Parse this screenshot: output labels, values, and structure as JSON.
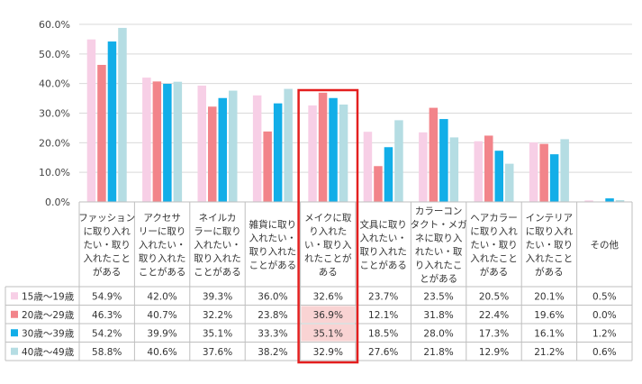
{
  "chart_data": {
    "type": "bar",
    "categories": [
      "ファッションに取り入れたい・取り入れたことがある",
      "アクセサリーに取り入れたい・取り入れたことがある",
      "ネイルカラーに取り入れたい・取り入れたことがある",
      "雑貨に取り入れたい・取り入れたことがある",
      "メイクに取り入れたい・取り入れたことがある",
      "文具に取り入れたい・取り入れたことがある",
      "カラーコンタクト・メガネに取り入れたい・取り入れたことがある",
      "ヘアカラーに取り入れたい・取り入れたことがある",
      "インテリアに取り入れたい・取り入れたことがある",
      "その他"
    ],
    "category_lines": [
      [
        "ファッション",
        "に取り入れ",
        "たい・取り",
        "入れたこと",
        "がある"
      ],
      [
        "アクセサ",
        "リーに取り",
        "入れたい・",
        "取り入れた",
        "ことがある"
      ],
      [
        "ネイルカ",
        "ラーに取り",
        "入れたい・",
        "取り入れた",
        "ことがある"
      ],
      [
        "雑貨に取り",
        "入れたい・",
        "取り入れた",
        "ことがある"
      ],
      [
        "メイクに取",
        "り入れた",
        "い・取り入",
        "れたことが",
        "ある"
      ],
      [
        "文具に取り",
        "入れたい・",
        "取り入れた",
        "ことがある"
      ],
      [
        "カラーコン",
        "タクト・メガ",
        "ネに取り入",
        "れたい・取",
        "り入れたこ",
        "とがある"
      ],
      [
        "ヘアカラー",
        "に取り入れ",
        "たい・取り",
        "入れたこと",
        "がある"
      ],
      [
        "インテリア",
        "に取り入れ",
        "たい・取り",
        "入れたこと",
        "がある"
      ],
      [
        "その他"
      ]
    ],
    "series": [
      {
        "name": "15歳～19歳",
        "color": "#f7cfe6",
        "values": [
          54.9,
          42.0,
          39.3,
          36.0,
          32.6,
          23.7,
          23.5,
          20.5,
          20.1,
          0.5
        ]
      },
      {
        "name": "20歳～29歳",
        "color": "#f2848a",
        "values": [
          46.3,
          40.7,
          32.2,
          23.8,
          36.9,
          12.1,
          31.8,
          22.4,
          19.6,
          0.0
        ]
      },
      {
        "name": "30歳～39歳",
        "color": "#12aee8",
        "values": [
          54.2,
          39.9,
          35.1,
          33.3,
          35.1,
          18.5,
          28.0,
          17.3,
          16.1,
          1.2
        ]
      },
      {
        "name": "40歳～49歳",
        "color": "#b5dde3",
        "values": [
          58.8,
          40.6,
          37.6,
          38.2,
          32.9,
          27.6,
          21.8,
          12.9,
          21.2,
          0.6
        ]
      }
    ],
    "y_ticks": [
      "0.0%",
      "10.0%",
      "20.0%",
      "30.0%",
      "40.0%",
      "50.0%",
      "60.0%"
    ],
    "ylim": [
      0,
      60
    ],
    "unit": "%",
    "grid": true,
    "highlight": {
      "category_index": 4,
      "color": "#e41f1f",
      "cell_fill": "#f9d3d3",
      "highlighted_series": [
        1,
        2
      ]
    }
  }
}
